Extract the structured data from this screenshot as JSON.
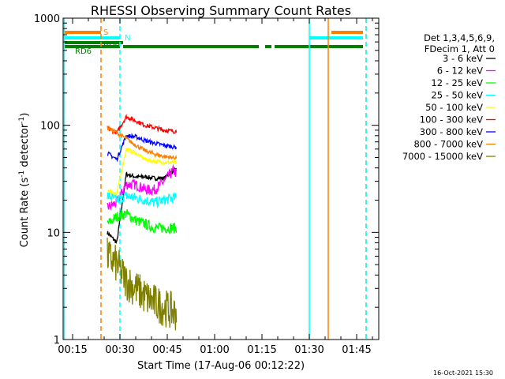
{
  "chart_data": {
    "type": "line",
    "title": "RHESSI Observing Summary Count Rates",
    "xlabel": "Start Time (17-Aug-06 00:12:22)",
    "ylabel_main": "Count Rate (s",
    "ylabel_sup1": "-1",
    "ylabel_mid": " detector",
    "ylabel_sup2": "-1",
    "ylabel_end": ")",
    "y_scale": "log",
    "ylim": [
      1,
      1000
    ],
    "xlim": [
      "00:12",
      "01:52"
    ],
    "x_ticks": [
      "00:15",
      "00:30",
      "00:45",
      "01:00",
      "01:15",
      "01:30",
      "01:45"
    ],
    "y_ticks": [
      "1",
      "10",
      "100",
      "1000"
    ],
    "legend_header": [
      "Det 1,3,4,5,6,9,",
      "FDecim 1, Att 0"
    ],
    "legend_position": "right",
    "grid": false,
    "date_stamp": "16-Oct-2021 15:30",
    "state_bars": [
      {
        "label": "S",
        "color": "#ff8000",
        "segments": [
          [
            "00:12",
            "00:24"
          ],
          [
            "01:37",
            "01:47"
          ]
        ]
      },
      {
        "label": "N",
        "color": "#00ffff",
        "segments": [
          [
            "00:12",
            "00:30"
          ],
          [
            "01:30",
            "01:47"
          ]
        ]
      },
      {
        "label": "RD0",
        "color": "#008000",
        "segments": [
          [
            "00:12",
            "00:31"
          ]
        ]
      },
      {
        "label": "RD6",
        "color": "#008000",
        "segments": [
          [
            "00:12",
            "00:30"
          ],
          [
            "00:31",
            "01:14"
          ],
          [
            "01:16",
            "01:18"
          ],
          [
            "01:19",
            "01:47"
          ]
        ]
      }
    ],
    "vertical_lines": [
      {
        "x": "00:12",
        "color": "#00ffff",
        "style": "solid"
      },
      {
        "x": "00:24",
        "color": "#ff8000",
        "style": "dashed"
      },
      {
        "x": "00:30",
        "color": "#00ffff",
        "style": "dashed"
      },
      {
        "x": "01:30",
        "color": "#00ffff",
        "style": "solid"
      },
      {
        "x": "01:36",
        "color": "#ff8000",
        "style": "solid"
      },
      {
        "x": "01:48",
        "color": "#ff8000",
        "style": "dashed"
      },
      {
        "x": "01:48",
        "color": "#00ffff",
        "style": "dashed"
      }
    ],
    "x": [
      "00:26",
      "00:29",
      "00:32",
      "00:35",
      "00:38",
      "00:41",
      "00:44",
      "00:47",
      "00:48"
    ],
    "series": [
      {
        "name": "3 - 6 keV",
        "color": "#000000",
        "values": [
          10,
          8,
          35,
          33,
          33,
          32,
          32,
          38,
          38
        ]
      },
      {
        "name": "6 - 12 keV",
        "color": "#ff00ff",
        "values": [
          17,
          19,
          28,
          28,
          25,
          25,
          30,
          38,
          35
        ]
      },
      {
        "name": "12 - 25 keV",
        "color": "#00ff00",
        "values": [
          12,
          14,
          15,
          13,
          12,
          11,
          11,
          11,
          11
        ]
      },
      {
        "name": "25 - 50 keV",
        "color": "#00ffff",
        "values": [
          22,
          20,
          22,
          21,
          20,
          19,
          20,
          21,
          21
        ]
      },
      {
        "name": "50 - 100 keV",
        "color": "#ffff00",
        "values": [
          25,
          23,
          60,
          55,
          48,
          46,
          45,
          45,
          44
        ]
      },
      {
        "name": "100 - 300 keV",
        "color": "#ff0000",
        "values": [
          95,
          85,
          120,
          110,
          100,
          95,
          90,
          88,
          88
        ]
      },
      {
        "name": "300 - 800 keV",
        "color": "#0000ff",
        "values": [
          55,
          48,
          80,
          78,
          72,
          68,
          65,
          63,
          62
        ]
      },
      {
        "name": "800 - 7000 keV",
        "color": "#ff8000",
        "values": [
          95,
          85,
          75,
          65,
          58,
          54,
          51,
          50,
          50
        ]
      },
      {
        "name": "7000 - 15000 keV",
        "color": "#808000",
        "values": [
          6,
          5,
          3.5,
          3,
          2.5,
          2.2,
          2,
          1.8,
          1.8
        ]
      }
    ]
  }
}
